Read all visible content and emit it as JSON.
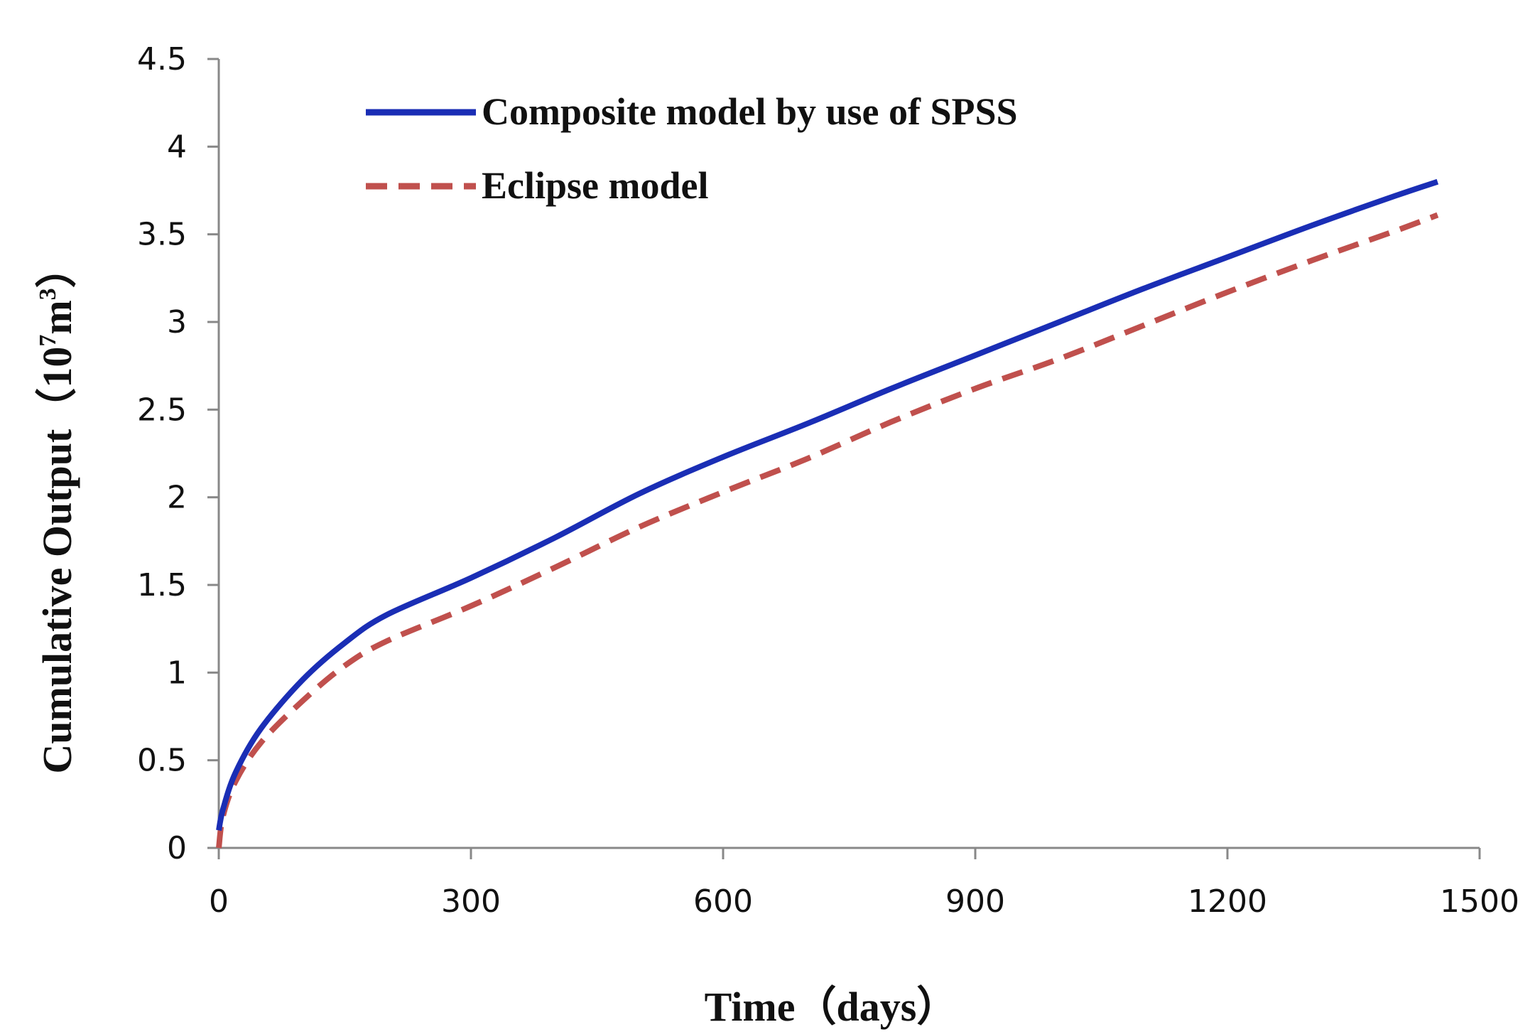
{
  "chart_data": {
    "type": "line",
    "title": "",
    "xlabel": "Time（days）",
    "ylabel": {
      "base": "Cumulative  Output（10",
      "exp1": "7",
      "mid": "m",
      "exp2": "3",
      "end": "）"
    },
    "xlim": [
      0,
      1500
    ],
    "ylim": [
      0,
      4.5
    ],
    "x_ticks": [
      "0",
      "300",
      "600",
      "900",
      "1200",
      "1500"
    ],
    "y_ticks": [
      "0",
      "0.5",
      "1",
      "1.5",
      "2",
      "2.5",
      "3",
      "3.5",
      "4",
      "4.5"
    ],
    "x_tick_values": [
      0,
      300,
      600,
      900,
      1200,
      1500
    ],
    "y_tick_values": [
      0,
      0.5,
      1,
      1.5,
      2,
      2.5,
      3,
      3.5,
      4,
      4.5
    ],
    "grid": false,
    "legend_position": "top-left",
    "series": [
      {
        "name": "Composite model by use of SPSS",
        "color": "#1a2eb5",
        "style": "solid",
        "x": [
          0,
          5,
          20,
          50,
          100,
          150,
          200,
          300,
          400,
          500,
          600,
          700,
          800,
          900,
          1000,
          1100,
          1200,
          1300,
          1400,
          1450
        ],
        "y": [
          0.1,
          0.22,
          0.43,
          0.68,
          0.96,
          1.17,
          1.33,
          1.54,
          1.77,
          2.02,
          2.23,
          2.42,
          2.62,
          2.81,
          3.0,
          3.19,
          3.37,
          3.55,
          3.72,
          3.8
        ]
      },
      {
        "name": "Eclipse model",
        "color": "#c0504d",
        "style": "dashed",
        "x": [
          0,
          5,
          20,
          50,
          100,
          150,
          200,
          300,
          400,
          500,
          600,
          700,
          800,
          900,
          1000,
          1100,
          1200,
          1300,
          1400,
          1450
        ],
        "y": [
          0.0,
          0.18,
          0.38,
          0.6,
          0.84,
          1.04,
          1.18,
          1.38,
          1.6,
          1.83,
          2.03,
          2.22,
          2.43,
          2.62,
          2.79,
          2.98,
          3.17,
          3.35,
          3.52,
          3.61
        ]
      }
    ]
  }
}
